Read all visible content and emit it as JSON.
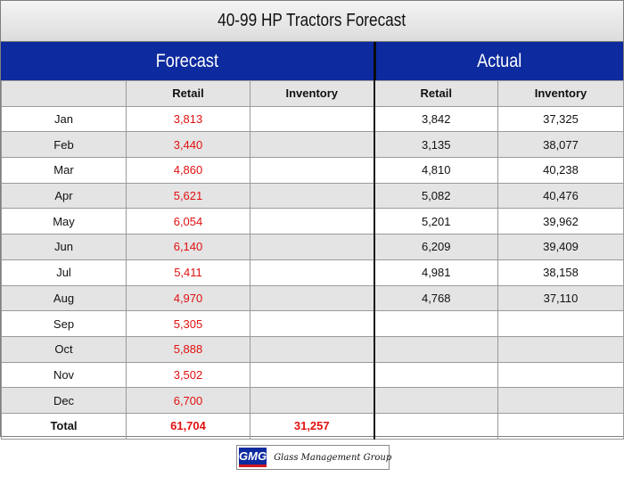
{
  "title": "40-99 HP Tractors Forecast",
  "groups": {
    "forecast": "Forecast",
    "actual": "Actual"
  },
  "columns": [
    "",
    "Retail",
    "Inventory",
    "Retail",
    "Inventory"
  ],
  "rows": [
    {
      "month": "Jan",
      "forecast_retail": "3,813",
      "forecast_inventory": "",
      "actual_retail": "3,842",
      "actual_inventory": "37,325"
    },
    {
      "month": "Feb",
      "forecast_retail": "3,440",
      "forecast_inventory": "",
      "actual_retail": "3,135",
      "actual_inventory": "38,077"
    },
    {
      "month": "Mar",
      "forecast_retail": "4,860",
      "forecast_inventory": "",
      "actual_retail": "4,810",
      "actual_inventory": "40,238"
    },
    {
      "month": "Apr",
      "forecast_retail": "5,621",
      "forecast_inventory": "",
      "actual_retail": "5,082",
      "actual_inventory": "40,476"
    },
    {
      "month": "May",
      "forecast_retail": "6,054",
      "forecast_inventory": "",
      "actual_retail": "5,201",
      "actual_inventory": "39,962"
    },
    {
      "month": "Jun",
      "forecast_retail": "6,140",
      "forecast_inventory": "",
      "actual_retail": "6,209",
      "actual_inventory": "39,409"
    },
    {
      "month": "Jul",
      "forecast_retail": "5,411",
      "forecast_inventory": "",
      "actual_retail": "4,981",
      "actual_inventory": "38,158"
    },
    {
      "month": "Aug",
      "forecast_retail": "4,970",
      "forecast_inventory": "",
      "actual_retail": "4,768",
      "actual_inventory": "37,110"
    },
    {
      "month": "Sep",
      "forecast_retail": "5,305",
      "forecast_inventory": "",
      "actual_retail": "",
      "actual_inventory": ""
    },
    {
      "month": "Oct",
      "forecast_retail": "5,888",
      "forecast_inventory": "",
      "actual_retail": "",
      "actual_inventory": ""
    },
    {
      "month": "Nov",
      "forecast_retail": "3,502",
      "forecast_inventory": "",
      "actual_retail": "",
      "actual_inventory": ""
    },
    {
      "month": "Dec",
      "forecast_retail": "6,700",
      "forecast_inventory": "",
      "actual_retail": "",
      "actual_inventory": ""
    }
  ],
  "total": {
    "label": "Total",
    "forecast_retail": "61,704",
    "forecast_inventory": "31,257",
    "actual_retail": "",
    "actual_inventory": ""
  },
  "logo": {
    "mark": "GMG",
    "text": "Glass Management Group"
  },
  "colors": {
    "header_blue": "#0d2a9e",
    "forecast_red": "#e11010",
    "stripe_gray": "#e4e4e4"
  }
}
